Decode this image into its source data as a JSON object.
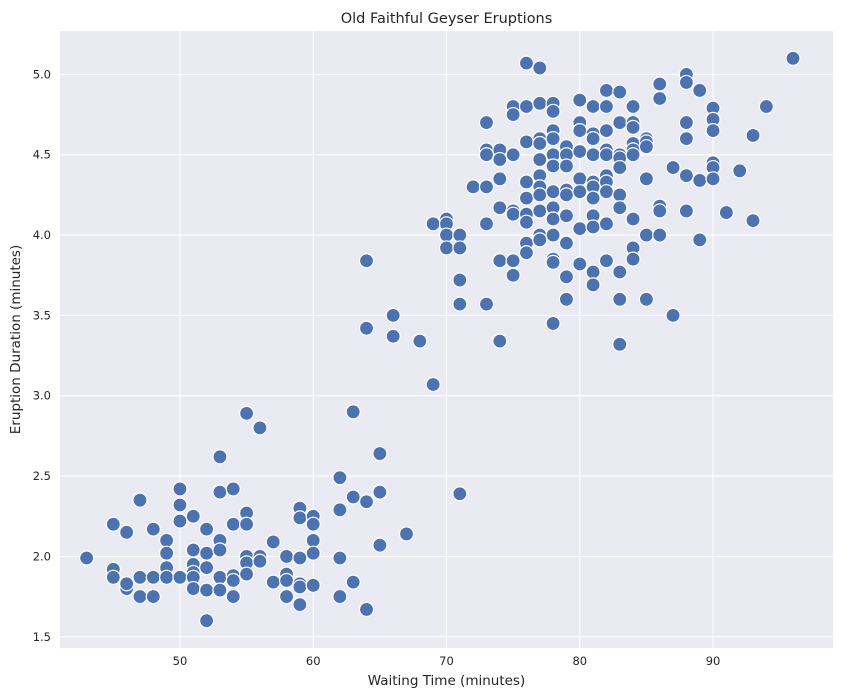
{
  "chart_data": {
    "type": "scatter",
    "title": "Old Faithful Geyser Eruptions",
    "xlabel": "Waiting Time (minutes)",
    "ylabel": "Eruption Duration (minutes)",
    "xlim": [
      41,
      99
    ],
    "ylim": [
      1.43,
      5.27
    ],
    "xticks": [
      50,
      60,
      70,
      80,
      90
    ],
    "yticks": [
      1.5,
      2.0,
      2.5,
      3.0,
      3.5,
      4.0,
      4.5,
      5.0
    ],
    "xtick_labels": [
      "50",
      "60",
      "70",
      "80",
      "90"
    ],
    "ytick_labels": [
      "1.5",
      "2.0",
      "2.5",
      "3.0",
      "3.5",
      "4.0",
      "4.5",
      "5.0"
    ],
    "grid": true,
    "background": "#eaeaf2",
    "point_color": "#4c72b0",
    "points": [
      [
        43,
        1.99
      ],
      [
        45,
        2.2
      ],
      [
        45,
        1.92
      ],
      [
        45,
        1.87
      ],
      [
        46,
        1.8
      ],
      [
        46,
        1.83
      ],
      [
        46,
        2.15
      ],
      [
        47,
        2.35
      ],
      [
        47,
        1.87
      ],
      [
        47,
        1.75
      ],
      [
        48,
        2.17
      ],
      [
        48,
        1.87
      ],
      [
        48,
        1.75
      ],
      [
        49,
        2.1
      ],
      [
        49,
        2.02
      ],
      [
        49,
        1.93
      ],
      [
        49,
        1.87
      ],
      [
        50,
        2.42
      ],
      [
        50,
        2.32
      ],
      [
        50,
        2.22
      ],
      [
        50,
        1.87
      ],
      [
        51,
        2.25
      ],
      [
        51,
        2.04
      ],
      [
        51,
        1.95
      ],
      [
        51,
        1.9
      ],
      [
        51,
        1.87
      ],
      [
        51,
        1.8
      ],
      [
        52,
        2.17
      ],
      [
        52,
        2.02
      ],
      [
        52,
        1.93
      ],
      [
        52,
        1.79
      ],
      [
        52,
        1.6
      ],
      [
        53,
        2.62
      ],
      [
        53,
        2.4
      ],
      [
        53,
        2.1
      ],
      [
        53,
        2.04
      ],
      [
        53,
        1.87
      ],
      [
        53,
        1.79
      ],
      [
        54,
        2.42
      ],
      [
        54,
        2.2
      ],
      [
        54,
        1.88
      ],
      [
        54,
        1.85
      ],
      [
        54,
        1.76
      ],
      [
        54,
        1.75
      ],
      [
        55,
        2.89
      ],
      [
        55,
        2.27
      ],
      [
        55,
        2.2
      ],
      [
        55,
        2.0
      ],
      [
        55,
        1.96
      ],
      [
        55,
        1.89
      ],
      [
        56,
        2.8
      ],
      [
        56,
        2.0
      ],
      [
        56,
        1.97
      ],
      [
        57,
        2.09
      ],
      [
        57,
        1.84
      ],
      [
        58,
        2.0
      ],
      [
        58,
        1.89
      ],
      [
        58,
        1.85
      ],
      [
        58,
        1.75
      ],
      [
        59,
        2.3
      ],
      [
        59,
        2.24
      ],
      [
        59,
        1.99
      ],
      [
        59,
        1.83
      ],
      [
        59,
        1.81
      ],
      [
        59,
        1.7
      ],
      [
        60,
        2.25
      ],
      [
        60,
        2.2
      ],
      [
        60,
        2.1
      ],
      [
        60,
        2.02
      ],
      [
        60,
        1.82
      ],
      [
        62,
        2.49
      ],
      [
        62,
        2.29
      ],
      [
        62,
        1.99
      ],
      [
        62,
        1.75
      ],
      [
        63,
        2.9
      ],
      [
        63,
        2.37
      ],
      [
        63,
        1.84
      ],
      [
        64,
        3.84
      ],
      [
        64,
        3.42
      ],
      [
        64,
        2.34
      ],
      [
        64,
        1.67
      ],
      [
        65,
        2.64
      ],
      [
        65,
        2.4
      ],
      [
        65,
        2.07
      ],
      [
        66,
        3.5
      ],
      [
        66,
        3.37
      ],
      [
        67,
        2.14
      ],
      [
        68,
        3.34
      ],
      [
        69,
        4.07
      ],
      [
        69,
        3.07
      ],
      [
        70,
        4.1
      ],
      [
        70,
        4.07
      ],
      [
        70,
        4.0
      ],
      [
        70,
        3.92
      ],
      [
        71,
        4.0
      ],
      [
        71,
        3.92
      ],
      [
        71,
        3.72
      ],
      [
        71,
        3.57
      ],
      [
        71,
        2.39
      ],
      [
        72,
        4.3
      ],
      [
        73,
        4.7
      ],
      [
        73,
        4.53
      ],
      [
        73,
        4.5
      ],
      [
        73,
        4.3
      ],
      [
        73,
        4.07
      ],
      [
        73,
        3.57
      ],
      [
        74,
        4.53
      ],
      [
        74,
        4.47
      ],
      [
        74,
        4.35
      ],
      [
        74,
        4.17
      ],
      [
        74,
        3.84
      ],
      [
        74,
        3.34
      ],
      [
        75,
        4.8
      ],
      [
        75,
        4.75
      ],
      [
        75,
        4.5
      ],
      [
        75,
        4.15
      ],
      [
        75,
        4.13
      ],
      [
        75,
        3.84
      ],
      [
        75,
        3.75
      ],
      [
        76,
        5.07
      ],
      [
        76,
        4.8
      ],
      [
        76,
        4.58
      ],
      [
        76,
        4.33
      ],
      [
        76,
        4.23
      ],
      [
        76,
        4.13
      ],
      [
        76,
        4.08
      ],
      [
        76,
        3.95
      ],
      [
        76,
        3.89
      ],
      [
        77,
        5.04
      ],
      [
        77,
        4.82
      ],
      [
        77,
        4.6
      ],
      [
        77,
        4.57
      ],
      [
        77,
        4.47
      ],
      [
        77,
        4.37
      ],
      [
        77,
        4.3
      ],
      [
        77,
        4.25
      ],
      [
        77,
        4.15
      ],
      [
        77,
        4.0
      ],
      [
        77,
        3.97
      ],
      [
        78,
        4.82
      ],
      [
        78,
        4.77
      ],
      [
        78,
        4.65
      ],
      [
        78,
        4.6
      ],
      [
        78,
        4.5
      ],
      [
        78,
        4.43
      ],
      [
        78,
        4.27
      ],
      [
        78,
        4.17
      ],
      [
        78,
        4.1
      ],
      [
        78,
        4.0
      ],
      [
        78,
        3.85
      ],
      [
        78,
        3.83
      ],
      [
        78,
        3.45
      ],
      [
        79,
        4.55
      ],
      [
        79,
        4.5
      ],
      [
        79,
        4.43
      ],
      [
        79,
        4.28
      ],
      [
        79,
        4.25
      ],
      [
        79,
        4.12
      ],
      [
        79,
        3.95
      ],
      [
        79,
        3.74
      ],
      [
        79,
        3.6
      ],
      [
        80,
        4.84
      ],
      [
        80,
        4.7
      ],
      [
        80,
        4.65
      ],
      [
        80,
        4.52
      ],
      [
        80,
        4.35
      ],
      [
        80,
        4.27
      ],
      [
        80,
        4.04
      ],
      [
        80,
        3.82
      ],
      [
        81,
        4.8
      ],
      [
        81,
        4.63
      ],
      [
        81,
        4.6
      ],
      [
        81,
        4.5
      ],
      [
        81,
        4.33
      ],
      [
        81,
        4.3
      ],
      [
        81,
        4.23
      ],
      [
        81,
        4.12
      ],
      [
        81,
        4.05
      ],
      [
        81,
        3.77
      ],
      [
        81,
        3.69
      ],
      [
        82,
        4.9
      ],
      [
        82,
        4.8
      ],
      [
        82,
        4.65
      ],
      [
        82,
        4.53
      ],
      [
        82,
        4.5
      ],
      [
        82,
        4.37
      ],
      [
        82,
        4.33
      ],
      [
        82,
        4.27
      ],
      [
        82,
        4.07
      ],
      [
        82,
        3.84
      ],
      [
        83,
        4.89
      ],
      [
        83,
        4.7
      ],
      [
        83,
        4.5
      ],
      [
        83,
        4.48
      ],
      [
        83,
        4.42
      ],
      [
        83,
        4.25
      ],
      [
        83,
        4.17
      ],
      [
        83,
        3.77
      ],
      [
        83,
        3.6
      ],
      [
        83,
        3.32
      ],
      [
        84,
        4.8
      ],
      [
        84,
        4.7
      ],
      [
        84,
        4.67
      ],
      [
        84,
        4.57
      ],
      [
        84,
        4.53
      ],
      [
        84,
        4.5
      ],
      [
        84,
        4.1
      ],
      [
        84,
        3.92
      ],
      [
        84,
        3.85
      ],
      [
        85,
        4.6
      ],
      [
        85,
        4.58
      ],
      [
        85,
        4.55
      ],
      [
        85,
        4.35
      ],
      [
        85,
        4.0
      ],
      [
        85,
        3.6
      ],
      [
        86,
        4.94
      ],
      [
        86,
        4.85
      ],
      [
        86,
        4.18
      ],
      [
        86,
        4.15
      ],
      [
        86,
        4.0
      ],
      [
        87,
        4.42
      ],
      [
        87,
        3.5
      ],
      [
        88,
        5.0
      ],
      [
        88,
        4.95
      ],
      [
        88,
        4.7
      ],
      [
        88,
        4.6
      ],
      [
        88,
        4.37
      ],
      [
        88,
        4.15
      ],
      [
        89,
        4.9
      ],
      [
        89,
        4.34
      ],
      [
        89,
        3.97
      ],
      [
        90,
        4.79
      ],
      [
        90,
        4.72
      ],
      [
        90,
        4.65
      ],
      [
        90,
        4.45
      ],
      [
        90,
        4.42
      ],
      [
        90,
        4.35
      ],
      [
        91,
        4.14
      ],
      [
        92,
        4.4
      ],
      [
        93,
        4.62
      ],
      [
        93,
        4.09
      ],
      [
        94,
        4.8
      ],
      [
        96,
        5.1
      ]
    ]
  }
}
